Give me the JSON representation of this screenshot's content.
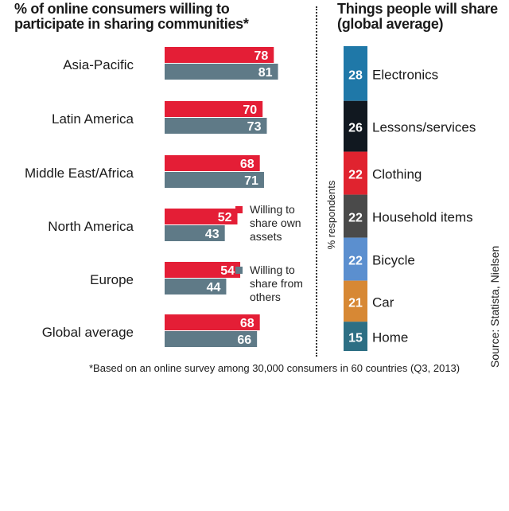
{
  "chart_data": [
    {
      "type": "bar",
      "title": "% of online consumers willing to participate in sharing communities*",
      "categories": [
        "Asia-Pacific",
        "Latin America",
        "Middle East/Africa",
        "North America",
        "Europe",
        "Global average"
      ],
      "series": [
        {
          "name": "Willing to share own assets",
          "color": "#e41e36",
          "values": [
            78,
            70,
            68,
            52,
            54,
            68
          ]
        },
        {
          "name": "Willing to share from others",
          "color": "#5f7a87",
          "values": [
            81,
            73,
            71,
            43,
            44,
            66
          ]
        }
      ],
      "xlim": [
        0,
        100
      ]
    },
    {
      "type": "bar",
      "title": "Things people will share (global average)",
      "ylabel": "% respondents",
      "categories": [
        "Electronics",
        "Lessons/services",
        "Clothing",
        "Household items",
        "Bicycle",
        "Car",
        "Home"
      ],
      "values": [
        28,
        26,
        22,
        22,
        22,
        21,
        15
      ],
      "colors": [
        "#1f78a8",
        "#111820",
        "#e0232f",
        "#4a4a4a",
        "#5b8fcf",
        "#d78834",
        "#2d6f84"
      ]
    }
  ],
  "footnote": "*Based on an online survey among 30,000 consumers in 60 countries (Q3, 2013)",
  "source": "Source: Statista, Nielsen"
}
